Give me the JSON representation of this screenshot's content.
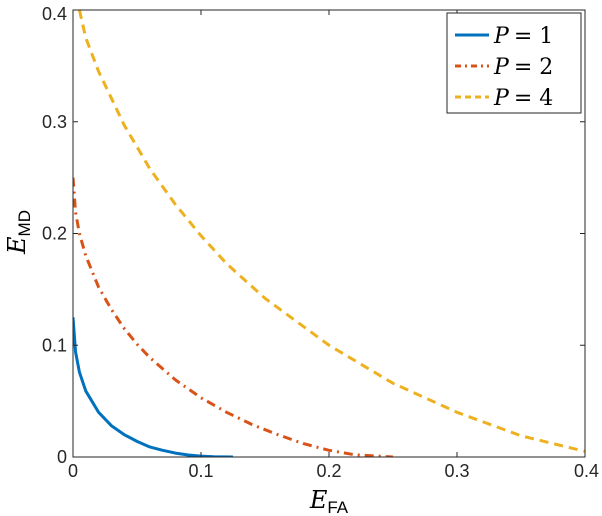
{
  "chart_data": {
    "type": "line",
    "title": "",
    "xlabel": "E_FA",
    "xlabel_main": "E",
    "xlabel_sub": "FA",
    "ylabel": "E_MD",
    "ylabel_main": "E",
    "ylabel_sub": "MD",
    "xlim": [
      0,
      0.4
    ],
    "ylim": [
      0,
      0.4
    ],
    "x_ticks": [
      0,
      0.1,
      0.2,
      0.3,
      0.4
    ],
    "x_tick_labels": [
      "0",
      "0.1",
      "0.2",
      "0.3",
      "0.4"
    ],
    "y_ticks": [
      0,
      0.1,
      0.2,
      0.3,
      0.4
    ],
    "y_tick_labels": [
      "0",
      "0.1",
      "0.2",
      "0.3",
      "0.4"
    ],
    "grid": false,
    "legend_position": "top-right",
    "series": [
      {
        "name": "P = 1",
        "name_var": "P",
        "name_val": "= 1",
        "color": "#0072BD",
        "style": "solid",
        "x": [
          0,
          0.002,
          0.005,
          0.01,
          0.02,
          0.03,
          0.04,
          0.05,
          0.06,
          0.07,
          0.08,
          0.09,
          0.1,
          0.11,
          0.125
        ],
        "y": [
          0.125,
          0.094,
          0.076,
          0.059,
          0.04,
          0.028,
          0.02,
          0.014,
          0.009,
          0.006,
          0.0035,
          0.0018,
          0.0008,
          0.0002,
          0
        ]
      },
      {
        "name": "P = 2",
        "name_var": "P",
        "name_val": "= 2",
        "color": "#D95319",
        "style": "dashdot",
        "x": [
          0,
          0.002,
          0.005,
          0.01,
          0.02,
          0.03,
          0.04,
          0.05,
          0.06,
          0.08,
          0.1,
          0.12,
          0.14,
          0.16,
          0.18,
          0.2,
          0.22,
          0.25
        ],
        "y": [
          0.25,
          0.219,
          0.2,
          0.18,
          0.152,
          0.132,
          0.115,
          0.101,
          0.089,
          0.069,
          0.053,
          0.04,
          0.029,
          0.02,
          0.012,
          0.006,
          0.002,
          0
        ]
      },
      {
        "name": "P = 4",
        "name_var": "P",
        "name_val": "= 4",
        "color": "#EDB120",
        "style": "dashed",
        "x": [
          0.005,
          0.01,
          0.02,
          0.04,
          0.06,
          0.08,
          0.1,
          0.12,
          0.15,
          0.2,
          0.25,
          0.3,
          0.35,
          0.4
        ],
        "y": [
          0.4,
          0.375,
          0.345,
          0.297,
          0.258,
          0.226,
          0.198,
          0.173,
          0.142,
          0.1,
          0.066,
          0.04,
          0.019,
          0.005
        ]
      }
    ]
  }
}
